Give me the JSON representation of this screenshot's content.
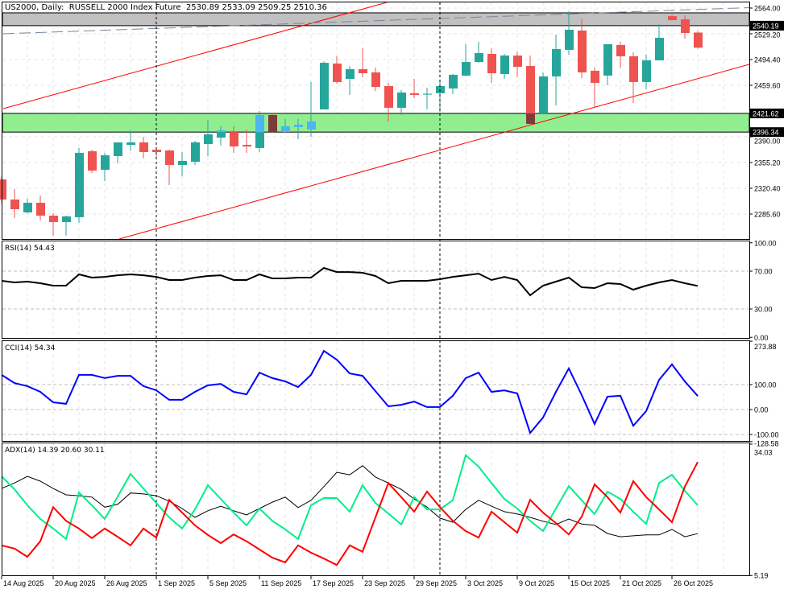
{
  "header": {
    "symbol": "US2000, Daily:",
    "instrument": "RUSSELL 2000 Index Future",
    "ohlc": "2530.89 2533.09 2509.25 2510.36"
  },
  "colors": {
    "bull": "#26a69a",
    "bear": "#ef5350",
    "bull_in_zone": "#4db6f2",
    "bear_in_zone": "#7b3b3b",
    "demand_zone": "#90ee90",
    "supply_zone": "#c0c0c0",
    "trendline": "#ff0000",
    "median_line": "#778899",
    "rsi": "#000000",
    "cci": "#0000ff",
    "adx": "#000000",
    "plus_di": "#00ee88",
    "minus_di": "#ff0000"
  },
  "chart_data": [
    {
      "type": "candlestick",
      "title": "US2000, Daily: RUSSELL 2000 Index Future",
      "ylim": [
        2262,
        2568
      ],
      "y_ticks": [
        "2564.00",
        "2529.20",
        "2494.40",
        "2459.60",
        "2390.00",
        "2355.20",
        "2320.40",
        "2285.60"
      ],
      "price_labels": [
        {
          "label": "2540.19",
          "value": 2540.19
        },
        {
          "label": "2421.62",
          "value": 2421.62
        },
        {
          "label": "2396.34",
          "value": 2396.34
        }
      ],
      "zones": [
        {
          "name": "supply",
          "from": 2540.19,
          "to": 2557.5
        },
        {
          "name": "demand",
          "from": 2396.34,
          "to": 2421.62
        }
      ],
      "x_labels": [
        {
          "label": "14 Aug 2025",
          "index": 0
        },
        {
          "label": "20 Aug 2025",
          "index": 4
        },
        {
          "label": "26 Aug 2025",
          "index": 8
        },
        {
          "label": "1 Sep 2025",
          "index": 12
        },
        {
          "label": "5 Sep 2025",
          "index": 16
        },
        {
          "label": "11 Sep 2025",
          "index": 20
        },
        {
          "label": "17 Sep 2025",
          "index": 24
        },
        {
          "label": "23 Sep 2025",
          "index": 28
        },
        {
          "label": "29 Sep 2025",
          "index": 32
        },
        {
          "label": "3 Oct 2025",
          "index": 36
        },
        {
          "label": "9 Oct 2025",
          "index": 40
        },
        {
          "label": "15 Oct 2025",
          "index": 44
        },
        {
          "label": "21 Oct 2025",
          "index": 48
        },
        {
          "label": "26 Oct 2025",
          "index": 52
        }
      ],
      "period_separators": [
        12,
        34
      ],
      "ohlc": [
        [
          2332.4,
          2336,
          2300,
          2305.2
        ],
        [
          2305.2,
          2319.3,
          2280.2,
          2292.1
        ],
        [
          2287.8,
          2306.3,
          2286,
          2300.8
        ],
        [
          2300.8,
          2310.6,
          2276.9,
          2283.4
        ],
        [
          2283.4,
          2286.7,
          2256.3,
          2274.7
        ],
        [
          2274.7,
          2283.4,
          2256.3,
          2282.4
        ],
        [
          2281.3,
          2374.8,
          2273.7,
          2368.3
        ],
        [
          2370.4,
          2372.6,
          2341.1,
          2344.3
        ],
        [
          2345.4,
          2368.3,
          2330.0,
          2365.0
        ],
        [
          2363.9,
          2382.4,
          2354.1,
          2382.4
        ],
        [
          2379.1,
          2398.7,
          2371.5,
          2382.4
        ],
        [
          2382.4,
          2390.0,
          2360.6,
          2369.3
        ],
        [
          2372.6,
          2373.6,
          2360.6,
          2369.3
        ],
        [
          2371.5,
          2372.6,
          2324.7,
          2351.9
        ],
        [
          2351.9,
          2369.3,
          2336.7,
          2357.4
        ],
        [
          2356.3,
          2384.6,
          2351.9,
          2382.4
        ],
        [
          2380.2,
          2412.9,
          2363.9,
          2393.3
        ],
        [
          2388.9,
          2404.2,
          2378.0,
          2398.7
        ],
        [
          2396.5,
          2404.2,
          2368.3,
          2376.9
        ],
        [
          2379.1,
          2399.8,
          2368.3,
          2376.9
        ],
        [
          2374.8,
          2424.8,
          2369.3,
          2419.4
        ],
        [
          2419.4,
          2421.6,
          2396.0,
          2396.5
        ],
        [
          2396.5,
          2414.0,
          2396.0,
          2404.2
        ],
        [
          2403.1,
          2414.0,
          2386.7,
          2406.3
        ],
        [
          2399.8,
          2464.0,
          2390.0,
          2410.7
        ],
        [
          2427.0,
          2492.0,
          2427.0,
          2490.0
        ],
        [
          2489.0,
          2498.8,
          2461.8,
          2464.0
        ],
        [
          2468.3,
          2485.7,
          2446.6,
          2481.4
        ],
        [
          2481.4,
          2509.6,
          2470.5,
          2475.9
        ],
        [
          2477.0,
          2483.5,
          2452.0,
          2457.4
        ],
        [
          2458.5,
          2462.9,
          2410.7,
          2429.2
        ],
        [
          2429.2,
          2453.1,
          2419.5,
          2449.8
        ],
        [
          2448.8,
          2468.3,
          2442.2,
          2446.6
        ],
        [
          2447.0,
          2456.3,
          2427.0,
          2448.2
        ],
        [
          2448.8,
          2465.1,
          2424.0,
          2458.5
        ],
        [
          2455.3,
          2474.8,
          2447.7,
          2473.8
        ],
        [
          2472.7,
          2515.1,
          2471.6,
          2491.1
        ],
        [
          2491.1,
          2518.3,
          2490.0,
          2503.1
        ],
        [
          2502.0,
          2509.6,
          2462.9,
          2475.9
        ],
        [
          2474.8,
          2502.0,
          2468.3,
          2499.8
        ],
        [
          2499.8,
          2505.3,
          2470.5,
          2484.6
        ],
        [
          2485.7,
          2499.8,
          2405.3,
          2407.4
        ],
        [
          2421.6,
          2477.0,
          2421.6,
          2471.6
        ],
        [
          2471.6,
          2528.1,
          2432.4,
          2508.5
        ],
        [
          2507.5,
          2559.7,
          2500.9,
          2534.7
        ],
        [
          2533.6,
          2548.8,
          2469.4,
          2477.0
        ],
        [
          2479.2,
          2483.5,
          2429.2,
          2462.9
        ],
        [
          2472.7,
          2515.1,
          2459.6,
          2515.1
        ],
        [
          2514.0,
          2518.3,
          2483.5,
          2498.8
        ],
        [
          2498.8,
          2504.2,
          2435.7,
          2464.0
        ],
        [
          2464.0,
          2500.9,
          2454.2,
          2493.3
        ],
        [
          2493.3,
          2542.3,
          2493.3,
          2523.8
        ],
        [
          2553.1,
          2555.3,
          2546.6,
          2547.7
        ],
        [
          2548.8,
          2554.2,
          2522.7,
          2530.3
        ],
        [
          2530.89,
          2533.09,
          2509.25,
          2510.36
        ]
      ]
    },
    {
      "type": "line",
      "title": "RSI(14)",
      "value_label": "54.43",
      "ylim": [
        0,
        100
      ],
      "y_ticks": [
        "100.00",
        "70.00",
        "30.00",
        "0.00"
      ],
      "levels": [
        70,
        30
      ],
      "values": [
        59.8,
        58.1,
        58.9,
        57.2,
        54.7,
        54.7,
        66.6,
        63.2,
        64.0,
        65.7,
        66.6,
        65.7,
        64.0,
        60.6,
        60.6,
        63.2,
        64.9,
        65.7,
        60.6,
        60.6,
        66.6,
        62.3,
        62.3,
        63.2,
        63.2,
        73.4,
        69.1,
        69.1,
        68.3,
        64.9,
        57.2,
        59.8,
        59.8,
        59.8,
        61.5,
        64.0,
        65.7,
        67.4,
        60.6,
        64.0,
        60.6,
        44.5,
        54.7,
        58.9,
        63.2,
        53.0,
        52.1,
        57.2,
        56.4,
        50.4,
        54.7,
        58.1,
        60.6,
        57.2,
        54.43
      ]
    },
    {
      "type": "line",
      "title": "CCI(14)",
      "value_label": "54.34",
      "ylim": [
        -128.58,
        273.88
      ],
      "y_ticks": [
        "273.88",
        "100.00",
        "0.00",
        "-100.00",
        "-128.58"
      ],
      "levels": [
        100,
        0,
        -100
      ],
      "values": [
        139,
        106,
        94,
        71,
        29,
        23,
        139,
        139,
        126,
        135,
        135,
        94,
        77,
        39,
        39,
        71,
        97,
        103,
        71,
        61,
        148,
        126,
        113,
        90,
        139,
        235,
        200,
        145,
        135,
        74,
        13,
        19,
        32,
        10,
        10,
        55,
        126,
        148,
        71,
        77,
        65,
        -94,
        -32,
        71,
        165,
        58,
        -58,
        52,
        55,
        -65,
        -6,
        119,
        181,
        113,
        54.34
      ]
    },
    {
      "type": "line",
      "title": "ADX(14)",
      "value_label": "14.39 20.60 30.11",
      "ylim": [
        5.19,
        34.03
      ],
      "y_ticks": [
        "34.03",
        "5.19"
      ],
      "series": [
        {
          "name": "ADX",
          "values": [
            24.3,
            25.5,
            26.96,
            25.9,
            24.3,
            22.9,
            22.7,
            22.4,
            20.2,
            20.8,
            23.3,
            23.1,
            22.7,
            21.5,
            19.9,
            17.96,
            19.4,
            20.4,
            19.4,
            18.5,
            19.9,
            21.3,
            22.4,
            20.1,
            21.7,
            24.7,
            27.85,
            27.3,
            29.3,
            26.8,
            25.5,
            24.1,
            22.0,
            20.2,
            17.8,
            16.9,
            19.7,
            21.7,
            20.4,
            19.2,
            18.7,
            17.96,
            17.1,
            16.4,
            17.6,
            16.5,
            16.2,
            14.4,
            13.7,
            13.9,
            14.1,
            14.1,
            15.3,
            13.7,
            14.39
          ]
        },
        {
          "name": "+DI",
          "values": [
            26.96,
            24.1,
            20.6,
            17.6,
            15.5,
            13.2,
            23.4,
            20.6,
            17.6,
            22.5,
            27.5,
            24.3,
            21.1,
            17.96,
            15.5,
            19.7,
            25.0,
            22.0,
            19.0,
            16.2,
            19.9,
            17.2,
            15.3,
            13.2,
            20.6,
            22.2,
            22.2,
            19.2,
            25.0,
            21.1,
            18.8,
            16.4,
            22.4,
            19.7,
            19.7,
            21.7,
            31.6,
            29.1,
            25.5,
            22.0,
            19.9,
            17.2,
            14.95,
            19.9,
            24.8,
            21.7,
            18.7,
            23.6,
            22.0,
            19.2,
            16.5,
            25.5,
            27.3,
            23.8,
            20.6
          ]
        },
        {
          "name": "-DI",
          "values": [
            11.8,
            11.1,
            9.3,
            12.7,
            20.2,
            17.2,
            15.5,
            13.4,
            15.5,
            13.7,
            11.8,
            15.5,
            13.5,
            21.8,
            19.0,
            16.2,
            14.1,
            12.3,
            14.2,
            12.7,
            10.9,
            9.1,
            8.06,
            11.8,
            10.2,
            8.9,
            7.5,
            11.8,
            10.4,
            17.96,
            25.5,
            22.4,
            19.2,
            23.6,
            20.2,
            17.2,
            14.95,
            13.5,
            19.2,
            16.9,
            14.6,
            21.8,
            19.0,
            16.7,
            14.2,
            18.1,
            25.2,
            22.4,
            19.0,
            25.9,
            22.4,
            19.7,
            16.9,
            24.7,
            30.11
          ]
        }
      ]
    }
  ]
}
